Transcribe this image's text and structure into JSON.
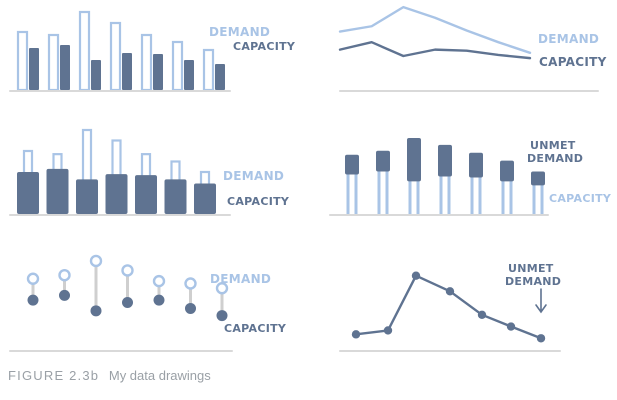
{
  "colors": {
    "demand": "#a9c4e6",
    "capacity": "#5f7391",
    "axis": "#d9d9d9",
    "caption": "#9aa0a6",
    "stem": "#cfcfcf"
  },
  "caption": {
    "figure": "FIGURE 2.3b",
    "text": "My data drawings"
  },
  "chart_data": [
    {
      "type": "bar",
      "style": "side-by-side",
      "title": "",
      "categories": [
        "",
        "",
        "",
        "",
        "",
        "",
        ""
      ],
      "series": [
        {
          "name": "DEMAND",
          "values": [
            58,
            55,
            78,
            67,
            55,
            48,
            40
          ]
        },
        {
          "name": "CAPACITY",
          "values": [
            42,
            45,
            30,
            37,
            36,
            30,
            26
          ]
        }
      ],
      "ylim": [
        0,
        80
      ],
      "grid": false
    },
    {
      "type": "line",
      "title": "",
      "x": [
        1,
        2,
        3,
        4,
        5,
        6,
        7
      ],
      "series": [
        {
          "name": "DEMAND",
          "values": [
            55,
            60,
            78,
            68,
            56,
            45,
            35
          ]
        },
        {
          "name": "CAPACITY",
          "values": [
            38,
            45,
            32,
            38,
            37,
            33,
            30
          ]
        }
      ],
      "ylim": [
        0,
        80
      ],
      "grid": false
    },
    {
      "type": "bar",
      "style": "overlapping",
      "title": "",
      "categories": [
        "",
        "",
        "",
        "",
        "",
        "",
        ""
      ],
      "series": [
        {
          "name": "DEMAND",
          "values": [
            60,
            57,
            80,
            70,
            57,
            50,
            40
          ]
        },
        {
          "name": "CAPACITY",
          "values": [
            40,
            43,
            33,
            38,
            37,
            33,
            29
          ]
        }
      ],
      "ylim": [
        0,
        80
      ],
      "grid": false
    },
    {
      "type": "bar",
      "style": "stacked-unmet",
      "title": "",
      "categories": [
        "",
        "",
        "",
        "",
        "",
        "",
        ""
      ],
      "series": [
        {
          "name": "CAPACITY",
          "values": [
            40,
            43,
            33,
            38,
            37,
            33,
            29
          ]
        },
        {
          "name": "UNMET DEMAND",
          "values": [
            20,
            21,
            44,
            32,
            25,
            21,
            14
          ]
        }
      ],
      "ylim": [
        0,
        80
      ],
      "grid": false
    },
    {
      "type": "scatter",
      "style": "dot-plot",
      "title": "",
      "x": [
        1,
        2,
        3,
        4,
        5,
        6,
        7
      ],
      "series": [
        {
          "name": "DEMAND",
          "values": [
            60,
            63,
            75,
            67,
            58,
            56,
            52
          ]
        },
        {
          "name": "CAPACITY",
          "values": [
            42,
            46,
            33,
            40,
            42,
            35,
            29
          ]
        }
      ],
      "ylim": [
        0,
        80
      ],
      "grid": false
    },
    {
      "type": "line",
      "title": "",
      "x": [
        1,
        2,
        3,
        4,
        5,
        6,
        7
      ],
      "series": [
        {
          "name": "UNMET DEMAND",
          "values": [
            8,
            10,
            38,
            30,
            18,
            12,
            6
          ]
        }
      ],
      "ylim": [
        0,
        45
      ],
      "grid": false
    }
  ],
  "labels": {
    "p1": {
      "demand": "DEMAND",
      "capacity": "CAPACITY"
    },
    "p2": {
      "demand": "DEMAND",
      "capacity": "CAPACITY"
    },
    "p3": {
      "demand": "DEMAND",
      "capacity": "CAPACITY"
    },
    "p4": {
      "unmet_line1": "UNMET",
      "unmet_line2": "DEMAND",
      "capacity": "CAPACITY"
    },
    "p5": {
      "demand": "DEMAND",
      "capacity": "CAPACITY"
    },
    "p6": {
      "unmet_line1": "UNMET",
      "unmet_line2": "DEMAND"
    }
  }
}
